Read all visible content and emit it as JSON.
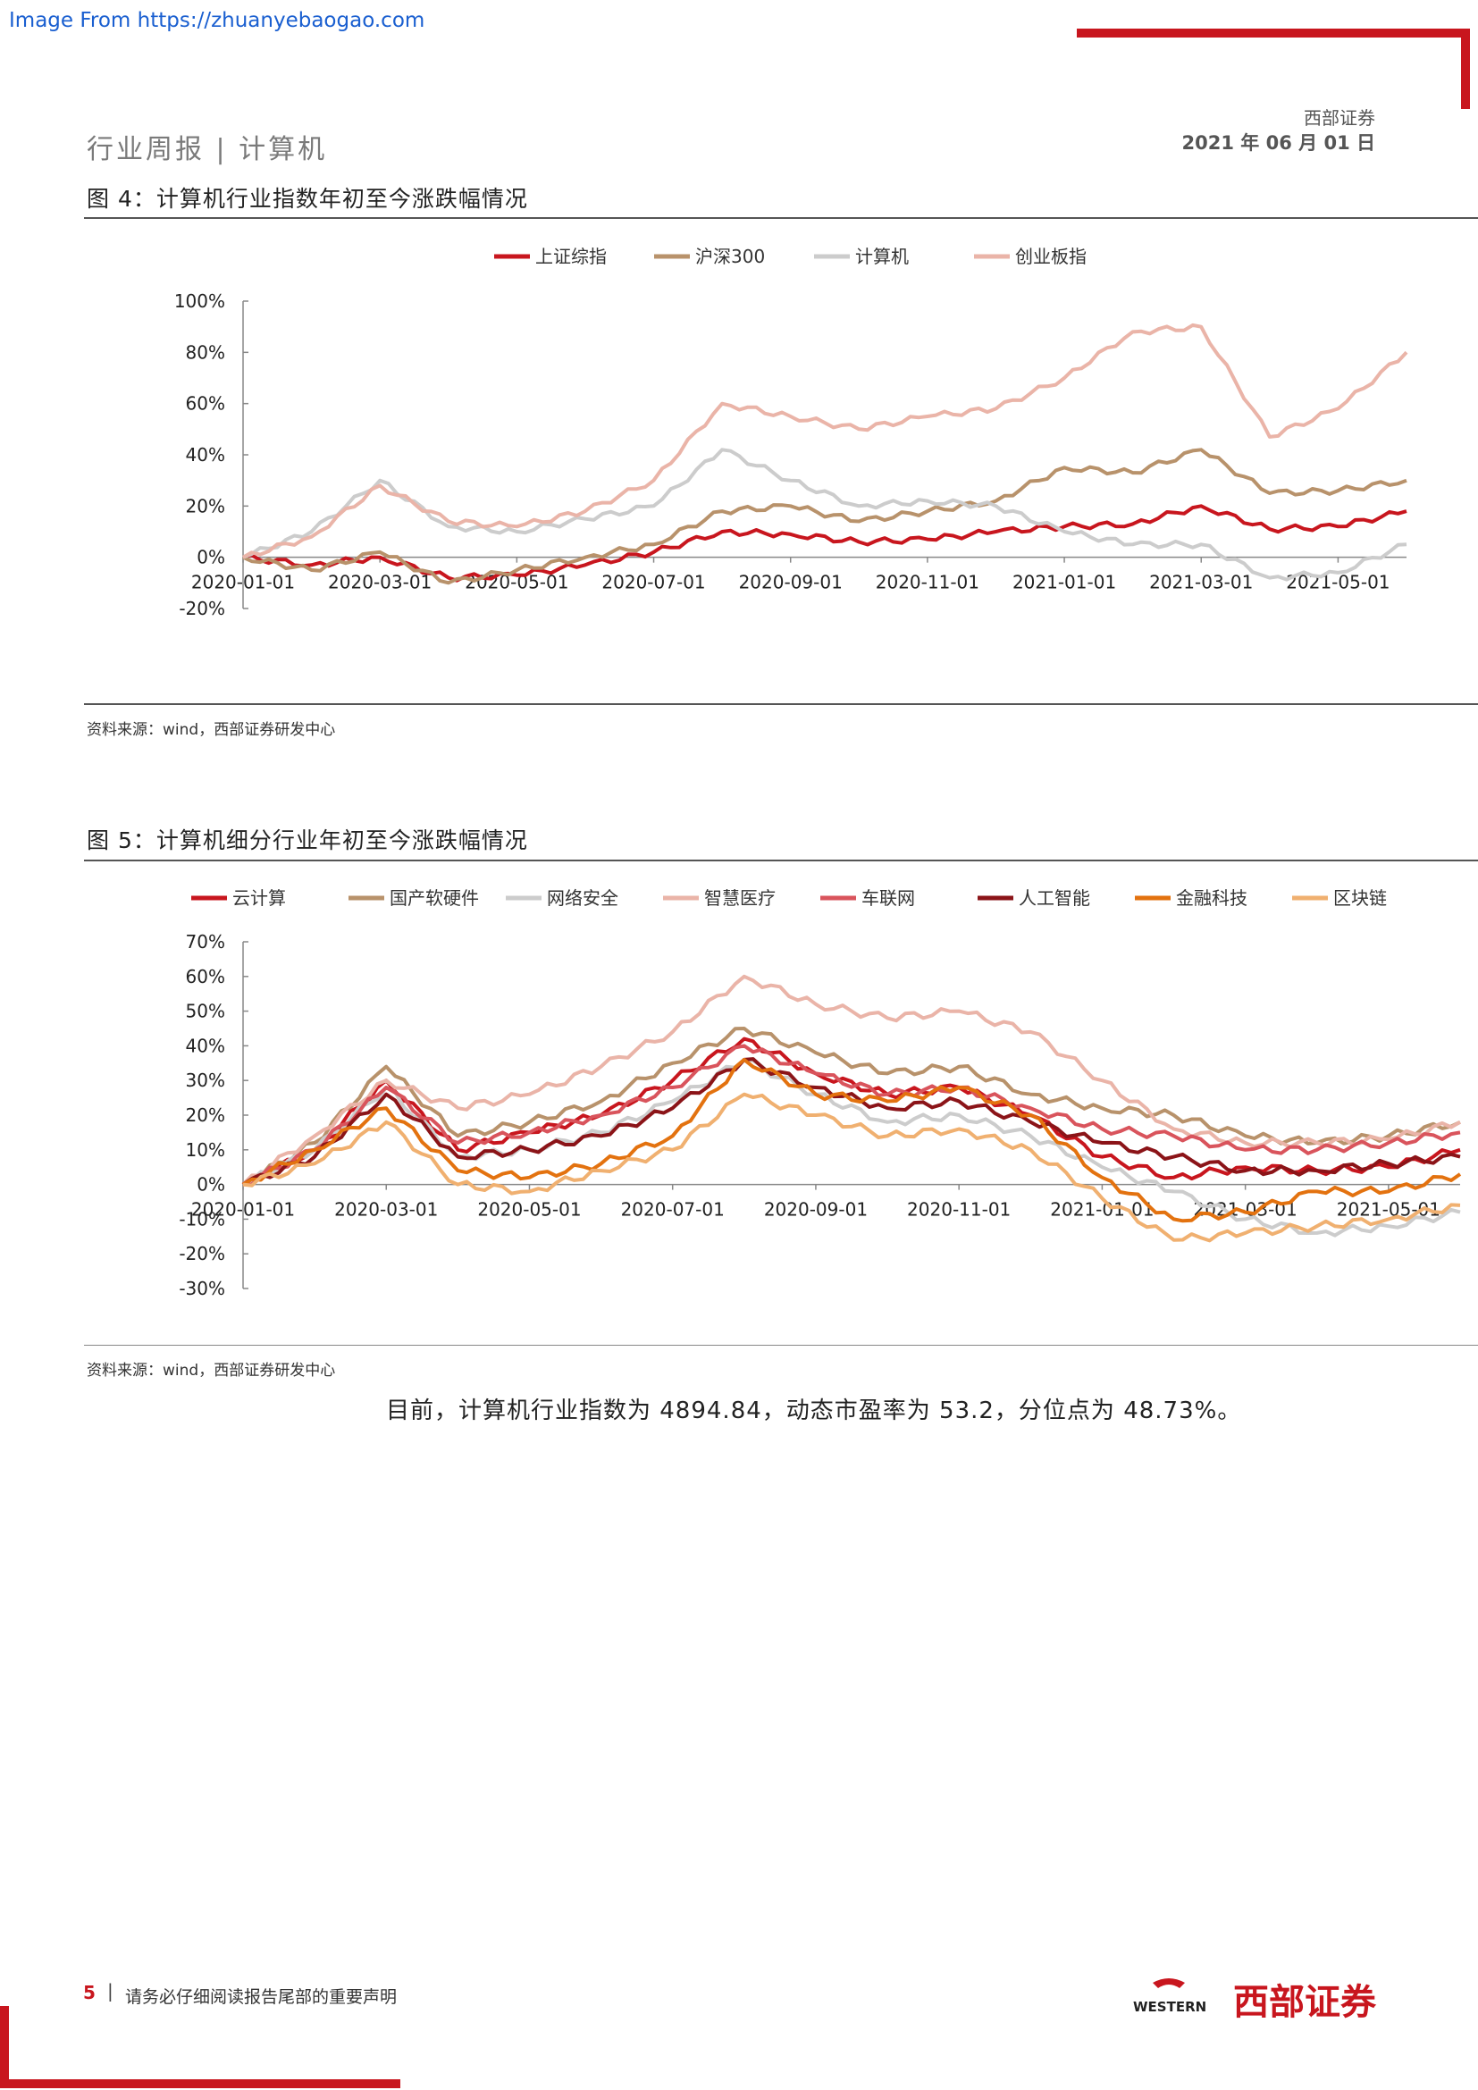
{
  "watermark": "Image From https://zhuanyebaogao.com",
  "header": {
    "title": "行业周报 | 计算机",
    "company": "西部证券",
    "date": "2021 年 06 月 01 日"
  },
  "figure4": {
    "title": "图 4：计算机行业指数年初至今涨跌幅情况",
    "source": "资料来源：wind，西部证券研发中心"
  },
  "figure5": {
    "title": "图 5：计算机细分行业年初至今涨跌幅情况",
    "source": "资料来源：wind，西部证券研发中心"
  },
  "summary": "目前，计算机行业指数为 4894.84，动态市盈率为 53.2，分位点为 48.73%。",
  "footer": {
    "page": "5",
    "separator": "|",
    "note": "请务必仔细阅读报告尾部的重要声明",
    "logo_en": "WESTERN",
    "logo_cn": "西部证券"
  },
  "colors": {
    "accent": "#c8161e"
  },
  "chart_data": [
    {
      "type": "line",
      "title": "",
      "ylim": [
        -20,
        100
      ],
      "yticks": [
        "100%",
        "80%",
        "60%",
        "40%",
        "20%",
        "0%",
        "-20%"
      ],
      "ytick_values": [
        100,
        80,
        60,
        40,
        20,
        0,
        -20
      ],
      "xtick_labels": [
        "2020-01-01",
        "2020-03-01",
        "2020-05-01",
        "2020-07-01",
        "2020-09-01",
        "2020-11-01",
        "2021-01-01",
        "2021-03-01",
        "2021-05-01"
      ],
      "xtick_index": [
        0,
        2,
        4,
        6,
        8,
        10,
        12,
        14,
        16
      ],
      "x_count": 18,
      "legend": "top",
      "series": [
        {
          "name": "上证综指",
          "color": "#c8161e",
          "values": [
            0,
            -3,
            0,
            -8,
            -7,
            -3,
            2,
            10,
            9,
            6,
            7,
            10,
            12,
            13,
            20,
            11,
            12,
            18
          ]
        },
        {
          "name": "沪深300",
          "color": "#b8926b",
          "values": [
            0,
            -5,
            2,
            -10,
            -5,
            0,
            5,
            18,
            20,
            14,
            18,
            22,
            35,
            33,
            42,
            25,
            26,
            30
          ]
        },
        {
          "name": "计算机",
          "color": "#cccccc",
          "values": [
            0,
            10,
            30,
            12,
            10,
            15,
            20,
            42,
            30,
            20,
            22,
            20,
            10,
            5,
            5,
            -8,
            -6,
            5
          ]
        },
        {
          "name": "创业板指",
          "color": "#eab4a8",
          "values": [
            0,
            8,
            28,
            14,
            12,
            18,
            30,
            60,
            55,
            50,
            55,
            58,
            70,
            88,
            90,
            47,
            58,
            80
          ]
        }
      ]
    },
    {
      "type": "line",
      "title": "",
      "ylim": [
        -30,
        70
      ],
      "yticks": [
        "70%",
        "60%",
        "50%",
        "40%",
        "30%",
        "20%",
        "10%",
        "0%",
        "-10%",
        "-20%",
        "-30%"
      ],
      "ytick_values": [
        70,
        60,
        50,
        40,
        30,
        20,
        10,
        0,
        -10,
        -20,
        -30
      ],
      "xtick_labels": [
        "2020-01-01",
        "2020-03-01",
        "2020-05-01",
        "2020-07-01",
        "2020-09-01",
        "2020-11-01",
        "2021-01-01",
        "2021-03-01",
        "2021-05-01"
      ],
      "xtick_index": [
        0,
        2,
        4,
        6,
        8,
        10,
        12,
        14,
        16
      ],
      "x_count": 18,
      "legend": "top",
      "series": [
        {
          "name": "云计算",
          "color": "#c8161e",
          "values": [
            0,
            10,
            30,
            10,
            15,
            20,
            30,
            42,
            32,
            26,
            28,
            20,
            8,
            2,
            5,
            4,
            5,
            10
          ]
        },
        {
          "name": "国产软硬件",
          "color": "#b8926b",
          "values": [
            0,
            12,
            34,
            14,
            18,
            24,
            35,
            45,
            38,
            32,
            34,
            26,
            22,
            20,
            14,
            12,
            14,
            18
          ]
        },
        {
          "name": "网络安全",
          "color": "#cccccc",
          "values": [
            0,
            10,
            28,
            8,
            10,
            15,
            24,
            36,
            26,
            18,
            20,
            14,
            5,
            -2,
            -10,
            -14,
            -12,
            -8
          ]
        },
        {
          "name": "智慧医疗",
          "color": "#eab4a8",
          "values": [
            0,
            14,
            30,
            22,
            26,
            34,
            44,
            60,
            52,
            48,
            50,
            44,
            30,
            16,
            12,
            12,
            13,
            18
          ]
        },
        {
          "name": "车联网",
          "color": "#d9545c",
          "values": [
            0,
            10,
            28,
            12,
            15,
            20,
            28,
            40,
            32,
            26,
            28,
            22,
            16,
            14,
            10,
            10,
            12,
            15
          ]
        },
        {
          "name": "人工智能",
          "color": "#8b1418",
          "values": [
            0,
            8,
            26,
            8,
            10,
            14,
            22,
            36,
            28,
            22,
            24,
            18,
            12,
            8,
            4,
            4,
            6,
            8
          ]
        },
        {
          "name": "金融科技",
          "color": "#e3720f",
          "values": [
            0,
            10,
            22,
            4,
            2,
            6,
            14,
            36,
            26,
            24,
            28,
            20,
            2,
            -10,
            -8,
            -2,
            -2,
            3
          ]
        },
        {
          "name": "区块链",
          "color": "#f0b070",
          "values": [
            0,
            6,
            18,
            0,
            -2,
            4,
            10,
            26,
            20,
            14,
            16,
            10,
            -4,
            -16,
            -14,
            -12,
            -10,
            -6
          ]
        }
      ]
    }
  ]
}
